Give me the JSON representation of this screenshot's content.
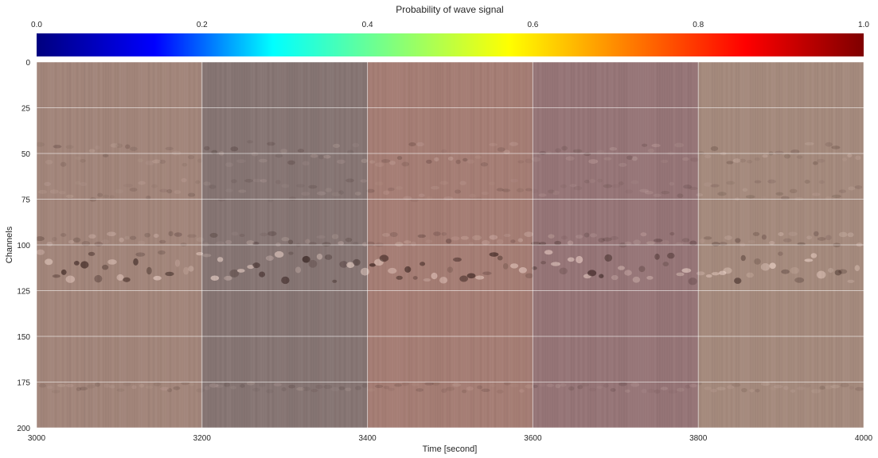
{
  "chart_data": {
    "type": "heatmap",
    "colorbar": {
      "label": "Probability of wave signal",
      "colormap": "jet",
      "range": [
        0.0,
        1.0
      ],
      "ticks": [
        "0.0",
        "0.2",
        "0.4",
        "0.6",
        "0.8",
        "1.0"
      ],
      "placement": "top",
      "stops": [
        "#00007f",
        "#0000ff",
        "#00ffff",
        "#7fff7f",
        "#ffff00",
        "#ff7f00",
        "#ff0000",
        "#7f0000"
      ]
    },
    "xlabel": "Time [second]",
    "ylabel": "Channels",
    "xlim": [
      3000,
      4000
    ],
    "ylim": [
      0,
      200
    ],
    "y_inverted": true,
    "grid": true,
    "xticks": [
      "3000",
      "3200",
      "3400",
      "3600",
      "3800",
      "4000"
    ],
    "yticks": [
      "0",
      "25",
      "50",
      "75",
      "100",
      "125",
      "150",
      "175",
      "200"
    ],
    "segments": [
      {
        "start": 3000,
        "end": 3200,
        "tint": "#a2857a"
      },
      {
        "start": 3200,
        "end": 3400,
        "tint": "#867573"
      },
      {
        "start": 3400,
        "end": 3600,
        "tint": "#a57d74"
      },
      {
        "start": 3600,
        "end": 3800,
        "tint": "#967577"
      },
      {
        "start": 3800,
        "end": 4000,
        "tint": "#a58a7d"
      }
    ],
    "wave_bands": [
      {
        "channel": 112,
        "halfwidth": 10,
        "strength": 1.0
      },
      {
        "channel": 97,
        "halfwidth": 4,
        "strength": 0.45
      },
      {
        "channel": 50,
        "halfwidth": 8,
        "strength": 0.35
      },
      {
        "channel": 70,
        "halfwidth": 7,
        "strength": 0.25
      },
      {
        "channel": 178,
        "halfwidth": 3,
        "strength": 0.25
      }
    ]
  }
}
